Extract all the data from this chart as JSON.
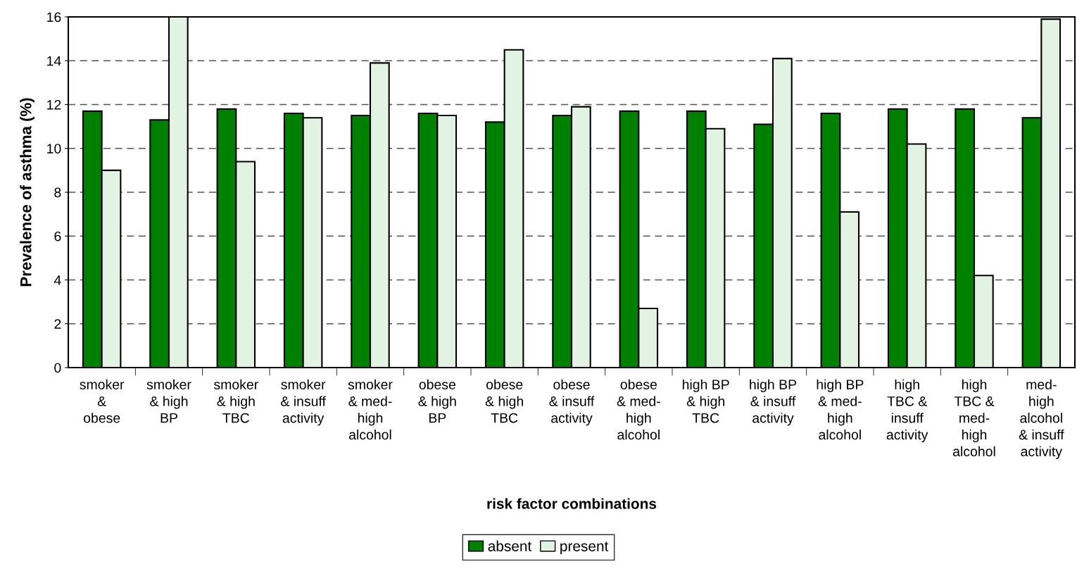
{
  "chart_data": {
    "type": "bar",
    "xlabel": "risk factor combinations",
    "ylabel": "Prevalence of asthma (%)",
    "categories": [
      "smoker\n&\nobese",
      "smoker\n& high\nBP",
      "smoker\n& high\nTBC",
      "smoker\n& insuff\nactivity",
      "smoker\n& med-\nhigh\nalcohol",
      "obese\n& high\nBP",
      "obese\n& high\nTBC",
      "obese\n& insuff\nactivity",
      "obese\n& med-\nhigh\nalcohol",
      "high BP\n& high\nTBC",
      "high BP\n& insuff\nactivity",
      "high BP\n& med-\nhigh\nalcohol",
      "high\nTBC &\ninsuff\nactivity",
      "high\nTBC &\nmed-\nhigh\nalcohol",
      "med-\nhigh\nalcohol\n& insuff\nactivity"
    ],
    "series": [
      {
        "name": "absent",
        "color": "#008000",
        "values": [
          11.7,
          11.3,
          11.8,
          11.6,
          11.5,
          11.6,
          11.2,
          11.5,
          11.7,
          11.7,
          11.1,
          11.6,
          11.8,
          11.8,
          11.4
        ]
      },
      {
        "name": "present",
        "color": "#e3f3e3",
        "values": [
          9.0,
          16.0,
          9.4,
          11.4,
          13.9,
          11.5,
          14.5,
          11.9,
          2.7,
          10.9,
          14.1,
          7.1,
          10.2,
          4.2,
          15.9
        ]
      }
    ],
    "ylim": [
      0,
      16
    ],
    "yticks": [
      0,
      2,
      4,
      6,
      8,
      10,
      12,
      14,
      16
    ],
    "grid": "y",
    "legend": "bottom"
  }
}
